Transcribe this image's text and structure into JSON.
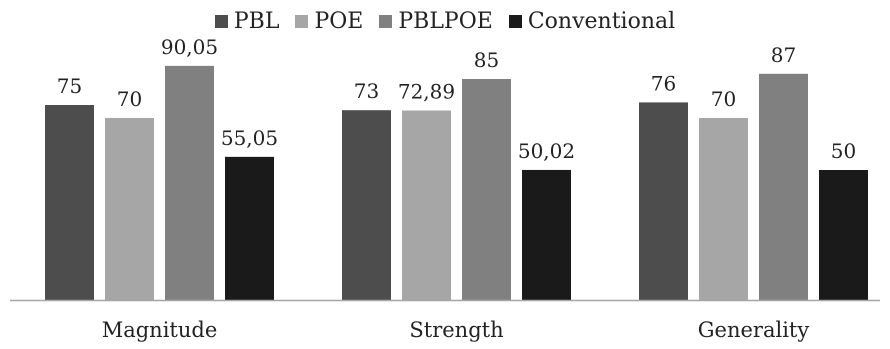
{
  "chart_data": {
    "type": "bar",
    "categories": [
      "Magnitude",
      "Strength",
      "Generality"
    ],
    "series": [
      {
        "name": "PBL",
        "color": "#4d4d4d",
        "values": [
          75,
          73,
          76
        ],
        "labels": [
          "75",
          "73",
          "76"
        ]
      },
      {
        "name": "POE",
        "color": "#a6a6a6",
        "values": [
          70,
          72.89,
          70
        ],
        "labels": [
          "70",
          "72,89",
          "70"
        ]
      },
      {
        "name": "PBLPOE",
        "color": "#808080",
        "values": [
          90.05,
          85,
          87
        ],
        "labels": [
          "90,05",
          "85",
          "87"
        ]
      },
      {
        "name": "Conventional",
        "color": "#1a1a1a",
        "values": [
          55.05,
          50.02,
          50
        ],
        "labels": [
          "55,05",
          "50,02",
          "50"
        ]
      }
    ],
    "ylim": [
      0,
      100
    ],
    "grid": false,
    "legend": "top-center",
    "axis_color": "#a6a6a6"
  }
}
